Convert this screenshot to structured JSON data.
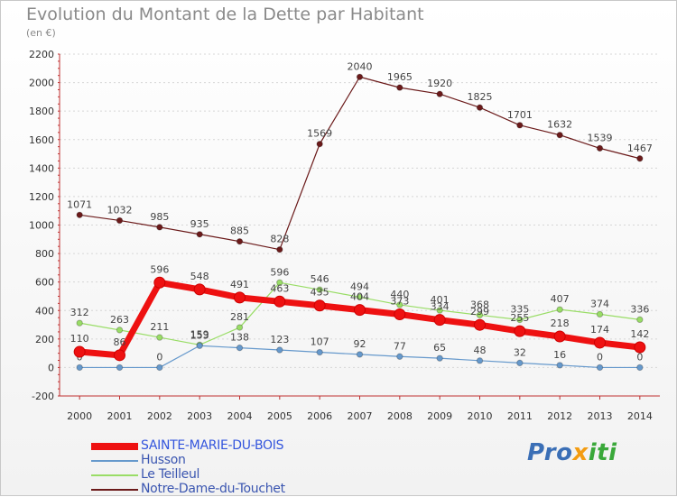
{
  "title": "Evolution du Montant de la Dette par Habitant",
  "subtitle": "(en €)",
  "logo": {
    "part1": "Pro",
    "part2": "x",
    "part3": "iti"
  },
  "chart_data": {
    "type": "line",
    "title": "Evolution du Montant de la Dette par Habitant",
    "ylabel": "(en €)",
    "x": [
      2000,
      2001,
      2002,
      2003,
      2004,
      2005,
      2006,
      2007,
      2008,
      2009,
      2010,
      2011,
      2012,
      2013,
      2014
    ],
    "ylim": [
      -200,
      2200
    ],
    "yticks": [
      -200,
      0,
      200,
      400,
      600,
      800,
      1000,
      1200,
      1400,
      1600,
      1800,
      2000,
      2200
    ],
    "grid": true,
    "legend_position": "bottom-left",
    "series": [
      {
        "name": "Notre-Dame-du-Touchet",
        "color": "#6b1a1a",
        "values": [
          1071,
          1032,
          985,
          935,
          885,
          828,
          1569,
          2040,
          1965,
          1920,
          1825,
          1701,
          1632,
          1539,
          1467
        ]
      },
      {
        "name": "Le Teilleul",
        "color": "#99dd66",
        "values": [
          312,
          263,
          211,
          159,
          281,
          596,
          546,
          494,
          440,
          401,
          368,
          335,
          407,
          374,
          336
        ]
      },
      {
        "name": "Husson",
        "color": "#6699cc",
        "values": [
          0,
          0,
          0,
          153,
          138,
          123,
          107,
          92,
          77,
          65,
          48,
          32,
          16,
          0,
          0
        ]
      },
      {
        "name": "SAINTE-MARIE-DU-BOIS",
        "color": "#ee1111",
        "values": [
          110,
          86,
          596,
          548,
          491,
          463,
          435,
          404,
          373,
          334,
          299,
          255,
          218,
          174,
          142
        ]
      }
    ]
  }
}
